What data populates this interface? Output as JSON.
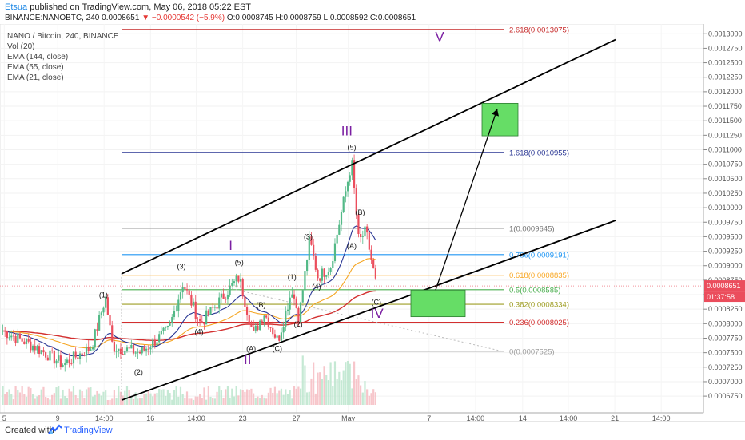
{
  "header": {
    "user": "Etsua",
    "published": "published on TradingView.com, May 06, 2018 05:22 EST",
    "ticker_line_a": "BINANCE:NANOBTC, 240 ",
    "ticker_price": "0.0008651",
    "ticker_change": " ▼ −0.0000542 (−5.9%)",
    "ohlc": " O:0.0008745 H:0.0008759 L:0.0008592 C:0.0008651"
  },
  "legend": [
    "NANO / Bitcoin, 240, BINANCE",
    "Vol (20)",
    "EMA (144, close)",
    "EMA (55, close)",
    "EMA (21, close)"
  ],
  "footer": {
    "created": "Created with",
    "brand": "TradingView"
  },
  "colors": {
    "up": "#53b987",
    "down": "#eb4d5c",
    "ema144": "#d32f2f",
    "ema55": "#f5a623",
    "ema21": "#283593",
    "fib_2618": "#c62828",
    "fib_1618": "#283593",
    "fib_1": "#757575",
    "fib_0786": "#2196f3",
    "fib_0618": "#f9a825",
    "fib_05": "#4caf50",
    "fib_0382": "#9e9d24",
    "fib_0236": "#d32f2f",
    "fib_0": "#9e9e9e",
    "box": "#66dd66",
    "wave_big": "#7b1fa2"
  },
  "chart_data": {
    "type": "candlestick",
    "ylim": [
      0.00066,
      0.00131
    ],
    "y_ticks": [
      "0.0013000",
      "0.0012750",
      "0.0012500",
      "0.0012250",
      "0.0012000",
      "0.0011750",
      "0.0011500",
      "0.0011250",
      "0.0011000",
      "0.0010750",
      "0.0010500",
      "0.0010250",
      "0.0010000",
      "0.0009750",
      "0.0009500",
      "0.0009250",
      "0.0009000",
      "0.0008750",
      "0.0008500",
      "0.0008250",
      "0.0008000",
      "0.0007750",
      "0.0007500",
      "0.0007250",
      "0.0007000",
      "0.0006750",
      "0.0006500"
    ],
    "x_ticks": [
      "5",
      "9",
      "14:00",
      "16",
      "14:00",
      "23",
      "27",
      "May",
      "7",
      "14:00",
      "14",
      "14:00",
      "21",
      "14:00"
    ],
    "last_price": "0.0008651",
    "countdown": "01:37:58",
    "fib_levels": [
      {
        "ratio": "2.618",
        "price": 0.0013075,
        "label": "2.618(0.0013075)",
        "color_key": "fib_2618"
      },
      {
        "ratio": "1.618",
        "price": 0.0010955,
        "label": "1.618(0.0010955)",
        "color_key": "fib_1618"
      },
      {
        "ratio": "1",
        "price": 0.0009645,
        "label": "1(0.0009645)",
        "color_key": "fib_1"
      },
      {
        "ratio": "0.786",
        "price": 0.0009191,
        "label": "0.786(0.0009191)",
        "color_key": "fib_0786"
      },
      {
        "ratio": "0.618",
        "price": 0.0008835,
        "label": "0.618(0.0008835)",
        "color_key": "fib_0618"
      },
      {
        "ratio": "0.5",
        "price": 0.0008585,
        "label": "0.5(0.0008585)",
        "color_key": "fib_05"
      },
      {
        "ratio": "0.382",
        "price": 0.0008334,
        "label": "0.382(0.0008334)",
        "color_key": "fib_0382"
      },
      {
        "ratio": "0.236",
        "price": 0.0008025,
        "label": "0.236(0.0008025)",
        "color_key": "fib_0236"
      },
      {
        "ratio": "0",
        "price": 0.0007525,
        "label": "0(0.0007525)",
        "color_key": "fib_0"
      }
    ],
    "wave_labels": [
      {
        "text": "(1)",
        "t": 0.147,
        "p": 0.000845
      },
      {
        "text": "(2)",
        "t": 0.197,
        "p": 0.000712
      },
      {
        "text": "(3)",
        "t": 0.258,
        "p": 0.000895
      },
      {
        "text": "(4)",
        "t": 0.283,
        "p": 0.000782
      },
      {
        "text": "(5)",
        "t": 0.34,
        "p": 0.000902
      },
      {
        "text": "(A)",
        "t": 0.357,
        "p": 0.000753
      },
      {
        "text": "(B)",
        "t": 0.371,
        "p": 0.000828
      },
      {
        "text": "(C)",
        "t": 0.394,
        "p": 0.000753
      },
      {
        "text": "(1)",
        "t": 0.415,
        "p": 0.000876
      },
      {
        "text": "(2)",
        "t": 0.424,
        "p": 0.000795
      },
      {
        "text": "(3)",
        "t": 0.438,
        "p": 0.000946
      },
      {
        "text": "(4)",
        "t": 0.45,
        "p": 0.00086
      },
      {
        "text": "(5)",
        "t": 0.5,
        "p": 0.0011
      },
      {
        "text": "(B)",
        "t": 0.512,
        "p": 0.000988
      },
      {
        "text": "(A)",
        "t": 0.5,
        "p": 0.00093
      },
      {
        "text": "(C)",
        "t": 0.535,
        "p": 0.000833
      }
    ],
    "big_waves": [
      {
        "text": "I",
        "t": 0.328,
        "p": 0.000927
      },
      {
        "text": "II",
        "t": 0.352,
        "p": 0.00073
      },
      {
        "text": "III",
        "t": 0.493,
        "p": 0.001125
      },
      {
        "text": "IV",
        "t": 0.536,
        "p": 0.00081
      },
      {
        "text": "V",
        "t": 0.625,
        "p": 0.001287
      }
    ]
  }
}
